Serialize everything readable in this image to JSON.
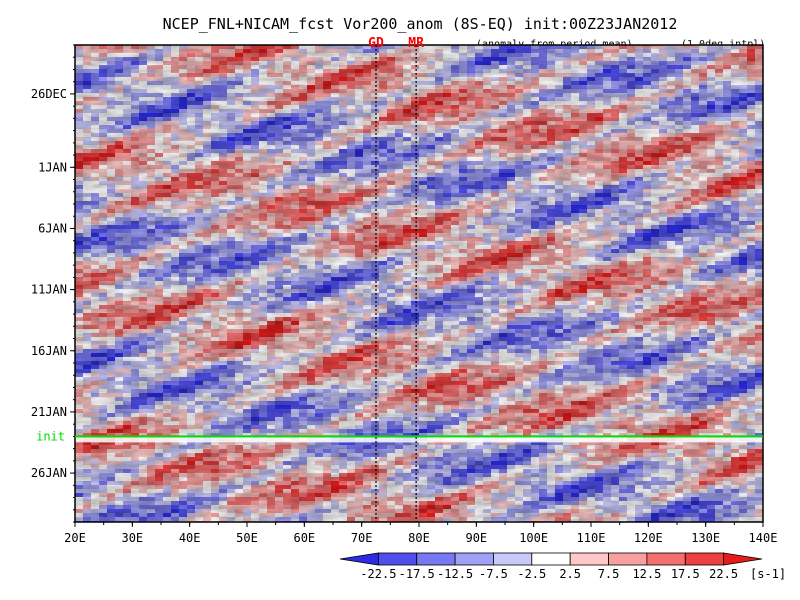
{
  "chart_data": {
    "type": "heatmap",
    "title": "NCEP_FNL+NICAM_fcst Vor200_anom (8S-EQ) init:00Z23JAN2012",
    "subtitle_left": "(anomaly from period mean)",
    "subtitle_right": "(1.0deg intpl)",
    "markers_top": [
      {
        "label": "GD",
        "lon": 72.5,
        "color": "#ff0000"
      },
      {
        "label": "MR",
        "lon": 79.5,
        "color": "#ff0000"
      }
    ],
    "x_ticks": [
      "20E",
      "30E",
      "40E",
      "50E",
      "60E",
      "70E",
      "80E",
      "90E",
      "100E",
      "110E",
      "120E",
      "130E",
      "140E"
    ],
    "x_values": [
      20,
      30,
      40,
      50,
      60,
      70,
      80,
      90,
      100,
      110,
      120,
      130,
      140
    ],
    "xlim": [
      20,
      140
    ],
    "y_ticks": [
      "26DEC",
      "1JAN",
      "6JAN",
      "11JAN",
      "16JAN",
      "21JAN",
      "26JAN"
    ],
    "y_values": [
      "2011-12-26",
      "2012-01-01",
      "2012-01-06",
      "2012-01-11",
      "2012-01-16",
      "2012-01-21",
      "2012-01-26"
    ],
    "ylim": [
      "2011-12-22",
      "2012-01-30"
    ],
    "init_label": "init",
    "init_date": "2012-01-23",
    "init_color": "#00dd00",
    "colorbar": {
      "levels": [
        "-22.5",
        "-17.5",
        "-12.5",
        "-7.5",
        "-2.5",
        "2.5",
        "7.5",
        "12.5",
        "17.5",
        "22.5"
      ],
      "unit": "[s-1]",
      "colors": [
        "#2c2ce6",
        "#4f4fee",
        "#7878f2",
        "#a0a0f6",
        "#c8c8fa",
        "#ffffff",
        "#fcc8c8",
        "#f8a0a0",
        "#f47070",
        "#ee4040",
        "#e61c1c"
      ]
    }
  }
}
